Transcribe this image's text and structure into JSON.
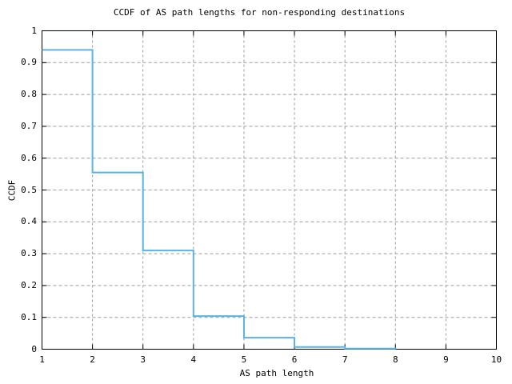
{
  "chart_data": {
    "type": "line",
    "step_style": "post",
    "title": "CCDF of AS path lengths for non-responding destinations",
    "xlabel": "AS path length",
    "ylabel": "CCDF",
    "xlim": [
      1,
      10
    ],
    "ylim": [
      0,
      1
    ],
    "grid": true,
    "legend": "none",
    "x_ticks": [
      {
        "v": 1,
        "label": "1"
      },
      {
        "v": 2,
        "label": "2"
      },
      {
        "v": 3,
        "label": "3"
      },
      {
        "v": 4,
        "label": "4"
      },
      {
        "v": 5,
        "label": "5"
      },
      {
        "v": 6,
        "label": "6"
      },
      {
        "v": 7,
        "label": "7"
      },
      {
        "v": 8,
        "label": "8"
      },
      {
        "v": 9,
        "label": "9"
      },
      {
        "v": 10,
        "label": "10"
      }
    ],
    "y_ticks": [
      {
        "v": 0,
        "label": "0"
      },
      {
        "v": 0.1,
        "label": "0.1"
      },
      {
        "v": 0.2,
        "label": "0.2"
      },
      {
        "v": 0.3,
        "label": "0.3"
      },
      {
        "v": 0.4,
        "label": "0.4"
      },
      {
        "v": 0.5,
        "label": "0.5"
      },
      {
        "v": 0.6,
        "label": "0.6"
      },
      {
        "v": 0.7,
        "label": "0.7"
      },
      {
        "v": 0.8,
        "label": "0.8"
      },
      {
        "v": 0.9,
        "label": "0.9"
      },
      {
        "v": 1,
        "label": "1"
      }
    ],
    "series": [
      {
        "name": "CCDF of AS path length",
        "color": "#56b4e9",
        "steps": [
          {
            "x_from": 1,
            "x_to": 2,
            "ccdf": 0.94
          },
          {
            "x_from": 2,
            "x_to": 3,
            "ccdf": 0.555
          },
          {
            "x_from": 3,
            "x_to": 4,
            "ccdf": 0.31
          },
          {
            "x_from": 4,
            "x_to": 5,
            "ccdf": 0.104
          },
          {
            "x_from": 5,
            "x_to": 6,
            "ccdf": 0.036
          },
          {
            "x_from": 6,
            "x_to": 7,
            "ccdf": 0.007
          },
          {
            "x_from": 7,
            "x_to": 8,
            "ccdf": 0.002
          }
        ],
        "final_drop_x": 8,
        "final_value": 0
      }
    ]
  },
  "colors": {
    "line": "#56b4e9",
    "grid": "#9c9c9c",
    "axis": "#000000",
    "background": "#ffffff",
    "text": "#000000"
  }
}
